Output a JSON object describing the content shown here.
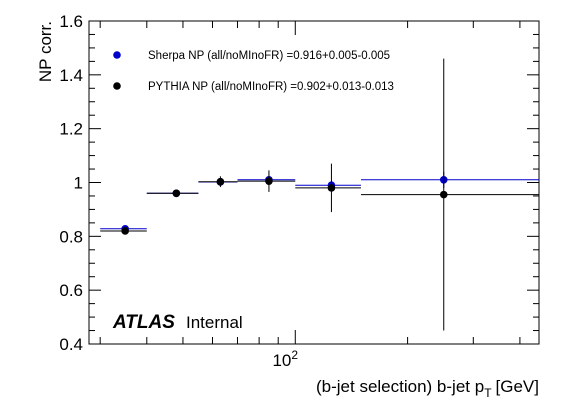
{
  "chart_data": {
    "type": "scatter",
    "xscale": "log",
    "xlim": [
      28,
      450
    ],
    "ylim": [
      0.4,
      1.6
    ],
    "xlabel": "(b-jet selection) b-jet p",
    "xlabel_sub": "T",
    "xlabel_unit": "[GeV]",
    "ylabel": "NP corr.",
    "yticks": [
      "0.4",
      "0.6",
      "0.8",
      "1",
      "1.2",
      "1.4",
      "1.6"
    ],
    "xtick_base": "10",
    "xtick_exp": "2",
    "annotation": {
      "experiment": "ATLAS",
      "status": "Internal"
    },
    "legend_position": "top-left",
    "series": [
      {
        "name": "Sherpa NP (all/noMInoFR) =0.916+0.005-0.005",
        "color": "#0000cc",
        "bins": [
          [
            30,
            40
          ],
          [
            40,
            55
          ],
          [
            55,
            70
          ],
          [
            70,
            100
          ],
          [
            100,
            150
          ],
          [
            150,
            450
          ]
        ],
        "points": [
          {
            "x": 35,
            "y": 0.828,
            "yerr": 0.004
          },
          {
            "x": 48,
            "y": 0.96,
            "yerr": 0.005
          },
          {
            "x": 63,
            "y": 1.002,
            "yerr": 0.008
          },
          {
            "x": 85,
            "y": 1.01,
            "yerr": 0.01
          },
          {
            "x": 125,
            "y": 0.99,
            "yerr": 0.015
          },
          {
            "x": 250,
            "y": 1.01,
            "yerr": 0.03
          }
        ]
      },
      {
        "name": "PYTHIA NP (all/noMInoFR) =0.902+0.013-0.013",
        "color": "#000000",
        "bins": [
          [
            30,
            40
          ],
          [
            40,
            55
          ],
          [
            55,
            70
          ],
          [
            70,
            100
          ],
          [
            100,
            150
          ],
          [
            150,
            450
          ]
        ],
        "points": [
          {
            "x": 35,
            "y": 0.82,
            "yerr": 0.01
          },
          {
            "x": 48,
            "y": 0.96,
            "yerr": 0.01
          },
          {
            "x": 63,
            "y": 1.003,
            "yerr": 0.02
          },
          {
            "x": 85,
            "y": 1.005,
            "yerr": 0.04
          },
          {
            "x": 125,
            "y": 0.98,
            "yerr": 0.09
          },
          {
            "x": 250,
            "y": 0.955,
            "yerr": 0.505
          }
        ]
      }
    ]
  }
}
